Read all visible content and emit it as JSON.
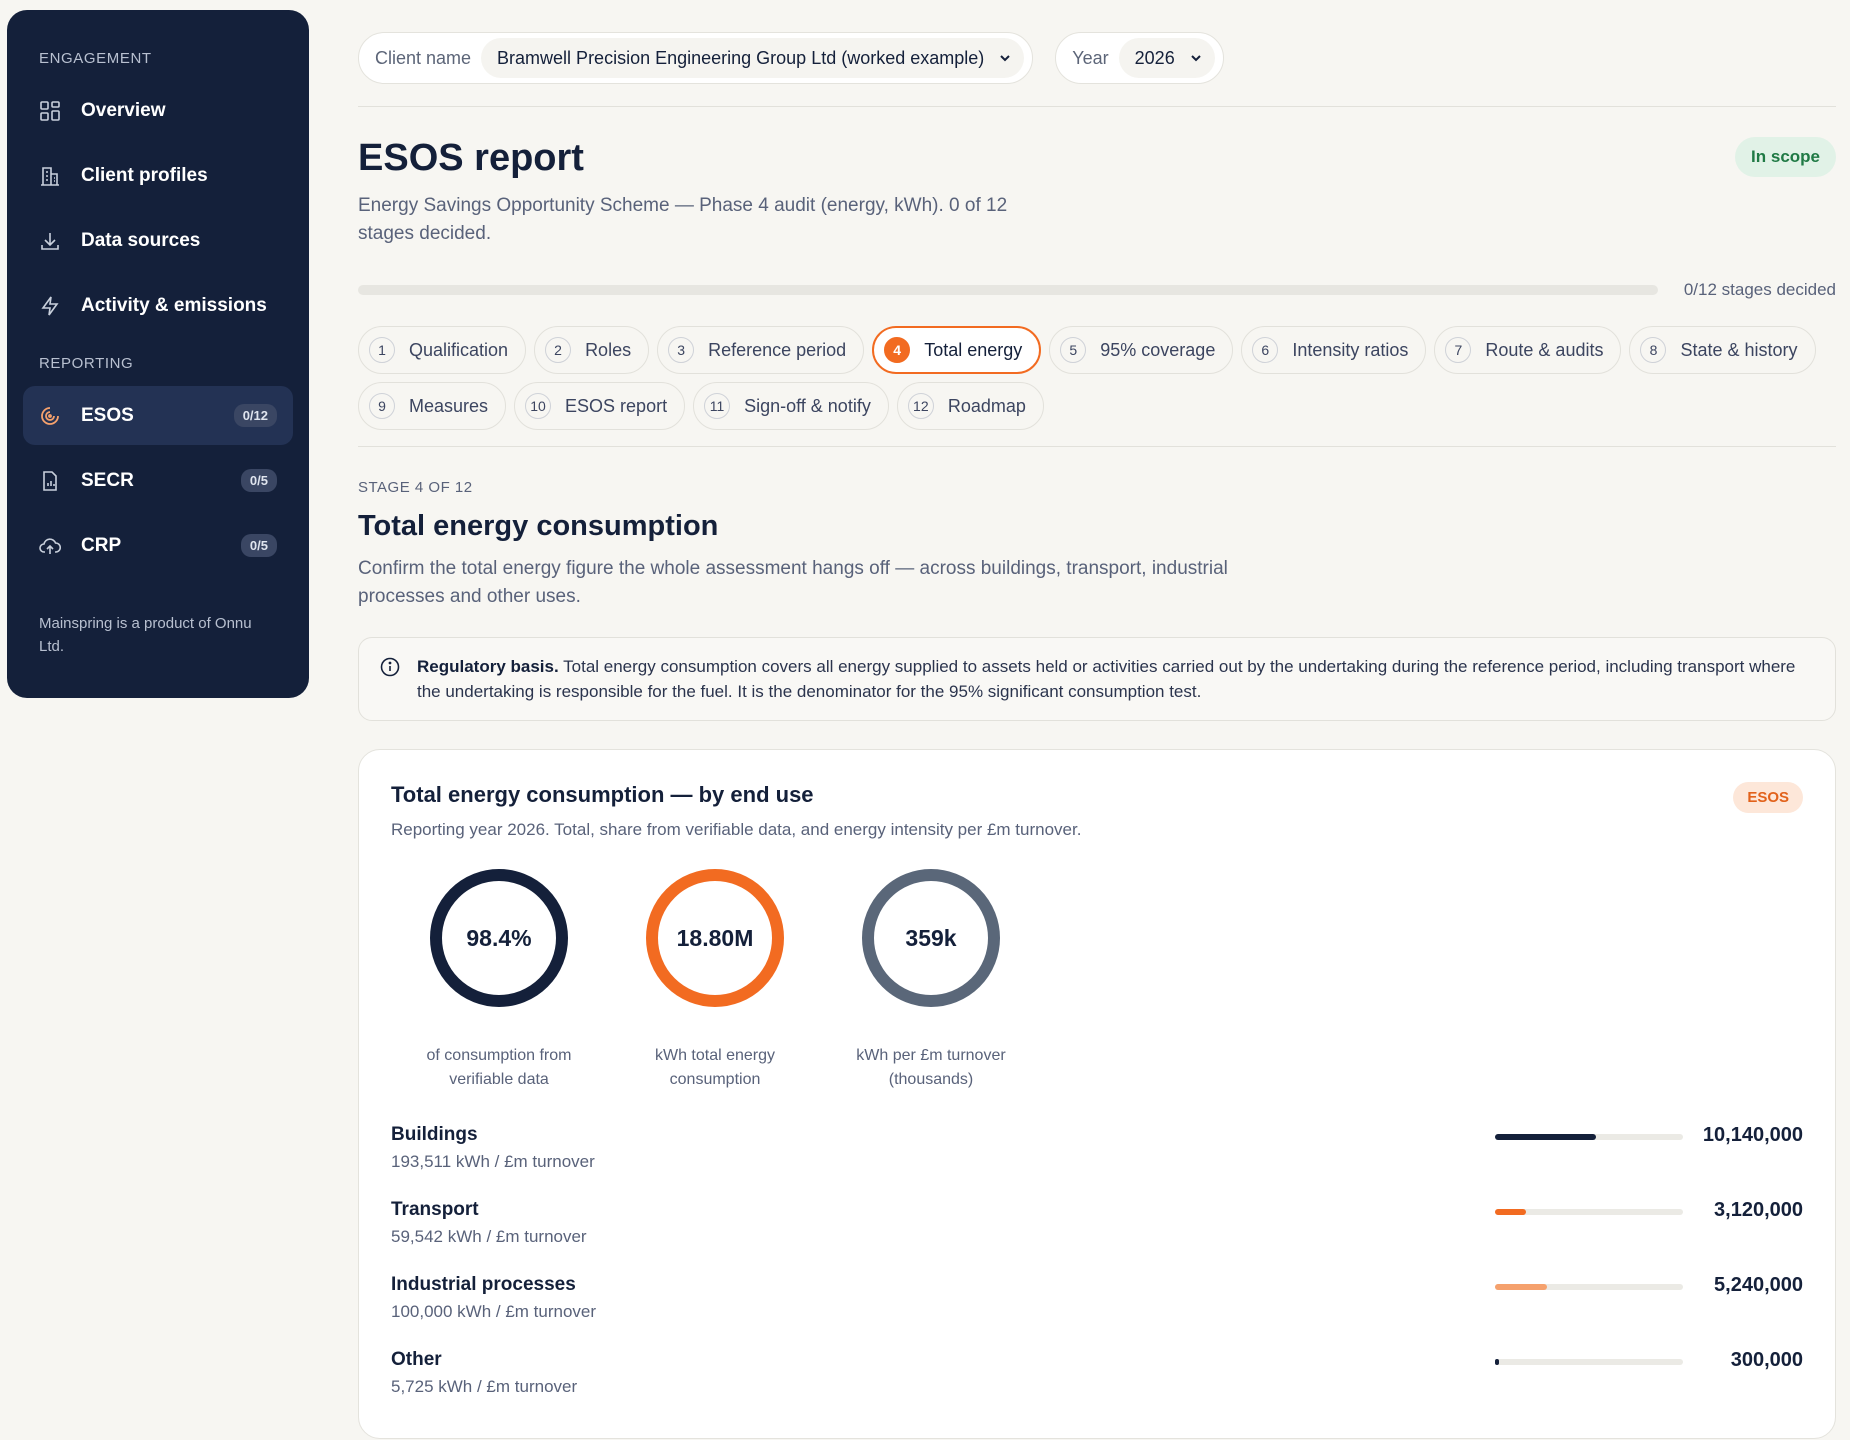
{
  "sidebar": {
    "section_engagement": "ENGAGEMENT",
    "section_reporting": "REPORTING",
    "items": [
      {
        "label": "Overview",
        "icon": "grid-icon"
      },
      {
        "label": "Client profiles",
        "icon": "building-icon"
      },
      {
        "label": "Data sources",
        "icon": "download-icon"
      },
      {
        "label": "Activity & emissions",
        "icon": "lightning-icon"
      }
    ],
    "reporting_items": [
      {
        "label": "ESOS",
        "badge": "0/12",
        "icon": "target-icon",
        "active": true
      },
      {
        "label": "SECR",
        "badge": "0/5",
        "icon": "document-chart-icon"
      },
      {
        "label": "CRP",
        "badge": "0/5",
        "icon": "cloud-upload-icon"
      }
    ],
    "footer": "Mainspring is a product of Onnu Ltd."
  },
  "topbar": {
    "client_label": "Client name",
    "client_value": "Bramwell Precision Engineering Group Ltd (worked example)",
    "year_label": "Year",
    "year_value": "2026"
  },
  "header": {
    "title": "ESOS report",
    "subtitle": "Energy Savings Opportunity Scheme — Phase 4 audit (energy, kWh). 0 of 12 stages decided.",
    "scope_badge": "In scope",
    "progress_text": "0/12 stages decided",
    "progress_fraction": 0
  },
  "stages": [
    {
      "num": "1",
      "label": "Qualification"
    },
    {
      "num": "2",
      "label": "Roles"
    },
    {
      "num": "3",
      "label": "Reference period"
    },
    {
      "num": "4",
      "label": "Total energy",
      "active": true
    },
    {
      "num": "5",
      "label": "95% coverage"
    },
    {
      "num": "6",
      "label": "Intensity ratios"
    },
    {
      "num": "7",
      "label": "Route & audits"
    },
    {
      "num": "8",
      "label": "State & history"
    },
    {
      "num": "9",
      "label": "Measures"
    },
    {
      "num": "10",
      "label": "ESOS report"
    },
    {
      "num": "11",
      "label": "Sign-off & notify"
    },
    {
      "num": "12",
      "label": "Roadmap"
    }
  ],
  "stage": {
    "eyebrow": "STAGE 4 OF 12",
    "title": "Total energy consumption",
    "description": "Confirm the total energy figure the whole assessment hangs off — across buildings, transport, industrial processes and other uses."
  },
  "callout": {
    "lead": "Regulatory basis.",
    "text": " Total energy consumption covers all energy supplied to assets held or activities carried out by the undertaking during the reference period, including transport where the undertaking is responsible for the fuel. It is the denominator for the 95% significant consumption test."
  },
  "card": {
    "title": "Total energy consumption — by end use",
    "subtitle": "Reporting year 2026. Total, share from verifiable data, and energy intensity per £m turnover.",
    "badge": "ESOS",
    "donuts": [
      {
        "value": "98.4%",
        "caption": "of consumption from verifiable data",
        "color": "#14203a"
      },
      {
        "value": "18.80M",
        "caption": "kWh total energy consumption",
        "color": "#f26b21"
      },
      {
        "value": "359k",
        "caption": "kWh per £m turnover (thousands)",
        "color": "#5a6779"
      }
    ],
    "end_uses": [
      {
        "name": "Buildings",
        "intensity": "193,511 kWh / £m turnover",
        "value": "10,140,000",
        "share": 0.539,
        "color": "#14203a"
      },
      {
        "name": "Transport",
        "intensity": "59,542 kWh / £m turnover",
        "value": "3,120,000",
        "share": 0.166,
        "color": "#f26b21"
      },
      {
        "name": "Industrial processes",
        "intensity": "100,000 kWh / £m turnover",
        "value": "5,240,000",
        "share": 0.279,
        "color": "#f5a16d"
      },
      {
        "name": "Other",
        "intensity": "5,725 kWh / £m turnover",
        "value": "300,000",
        "share": 0.016,
        "color": "#14203a"
      }
    ]
  }
}
